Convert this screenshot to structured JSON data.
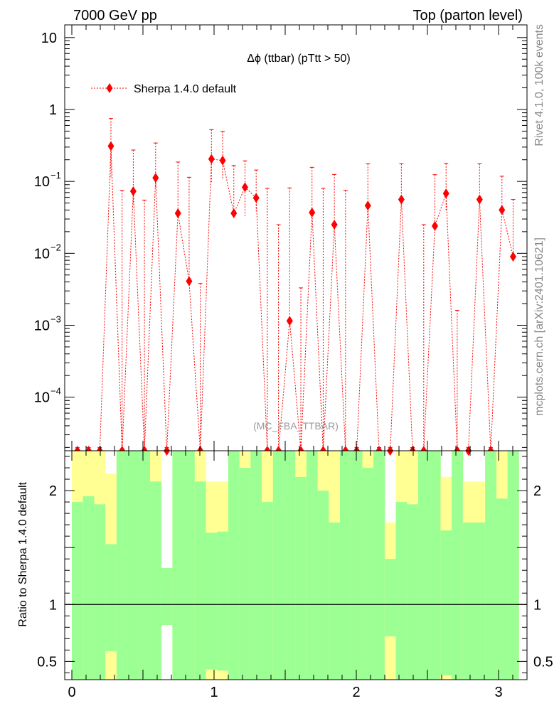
{
  "header": {
    "left": "7000 GeV pp",
    "right": "Top (parton level)"
  },
  "side_labels": {
    "rivet": "Rivet 4.1.0,  100k events",
    "mcplots": "mcplots.cern.ch [arXiv:2401.10621]"
  },
  "watermark": "(MC_FBA_TTBAR)",
  "ratio_ylabel": "Ratio to Sherpa 1.4.0 default",
  "chart_data": [
    {
      "type": "line",
      "title": "Δϕ (ttbar) (pTtt > 50)",
      "yscale": "log",
      "xlim": [
        -0.05,
        3.2
      ],
      "ylim": [
        1.8e-05,
        15
      ],
      "yticks": [
        {
          "value": 10,
          "label": "10"
        },
        {
          "value": 1,
          "label": "1"
        },
        {
          "value": 0.1,
          "base": "10",
          "exp": "−1"
        },
        {
          "value": 0.01,
          "base": "10",
          "exp": "−2"
        },
        {
          "value": 0.001,
          "base": "10",
          "exp": "−3"
        },
        {
          "value": 0.0001,
          "base": "10",
          "exp": "−4"
        }
      ],
      "legend": {
        "placement": "top-left",
        "entries": [
          "Sherpa 1.4.0 default"
        ]
      },
      "series": [
        {
          "name": "Sherpa 1.4.0 default",
          "color": "#ff0000",
          "x": [
            0.0393,
            0.1178,
            0.1963,
            0.2749,
            0.3534,
            0.432,
            0.5105,
            0.589,
            0.6676,
            0.7461,
            0.8247,
            0.9032,
            0.9817,
            1.0603,
            1.1388,
            1.2174,
            1.2959,
            1.3744,
            1.453,
            1.5315,
            1.6101,
            1.6886,
            1.7671,
            1.8457,
            1.9242,
            2.0028,
            2.0813,
            2.1598,
            2.2384,
            2.3169,
            2.3955,
            2.474,
            2.5525,
            2.6311,
            2.7096,
            2.7882,
            2.8667,
            2.9452,
            3.0238,
            3.1023
          ],
          "y": [
            1e-05,
            1e-05,
            1e-05,
            0.31,
            1e-05,
            0.073,
            1e-05,
            0.112,
            1e-05,
            0.036,
            0.0041,
            1e-05,
            0.205,
            0.195,
            0.036,
            0.083,
            0.059,
            1e-05,
            1e-05,
            0.00115,
            1e-05,
            0.037,
            1e-05,
            0.025,
            1e-05,
            1e-05,
            0.046,
            1e-05,
            1e-05,
            0.056,
            1e-05,
            1e-05,
            0.024,
            0.068,
            1e-05,
            1e-05,
            0.056,
            1e-05,
            0.04,
            0.009
          ],
          "yerr_up": [
            1e-05,
            1e-05,
            1e-05,
            0.44,
            0.075,
            0.2,
            0.055,
            0.23,
            1e-05,
            0.15,
            0.11,
            0.0038,
            0.32,
            0.3,
            0.13,
            0.11,
            0.085,
            0.08,
            0.025,
            0.08,
            0.0033,
            0.12,
            0.08,
            0.1,
            0.075,
            1e-05,
            0.13,
            1e-05,
            1e-05,
            0.12,
            1e-05,
            0.025,
            0.1,
            0.11,
            0.0016,
            1e-05,
            0.12,
            1e-05,
            0.078,
            0.047
          ],
          "yerr_down": [
            1e-05,
            1e-05,
            1e-05,
            0.2,
            1e-05,
            0.025,
            1e-05,
            0.03,
            1e-05,
            0.0002,
            1e-05,
            1e-05,
            0.11,
            0.09,
            0.0007,
            0.05,
            0.02,
            1e-05,
            1e-05,
            1e-05,
            1e-05,
            1e-05,
            1e-05,
            1e-05,
            1e-05,
            1e-05,
            1e-05,
            1e-05,
            1e-05,
            0.006,
            1e-05,
            1e-05,
            1e-05,
            0.03,
            1e-05,
            1e-05,
            1e-05,
            1e-05,
            0.003,
            1e-05
          ]
        }
      ]
    },
    {
      "type": "area",
      "ylabel": "Ratio to Sherpa 1.4.0 default",
      "xlim": [
        -0.05,
        3.2
      ],
      "ylim": [
        0.34,
        2.35
      ],
      "xticks": [
        0,
        1,
        2,
        3
      ],
      "yticks": [
        {
          "value": 0.5,
          "label": "0.5"
        },
        {
          "value": 1,
          "label": "1"
        },
        {
          "value": 2,
          "label": "2"
        }
      ],
      "reference_line": 1,
      "bin_width": 0.0785,
      "bins": [
        {
          "x": 0.0393,
          "g_lo": 0.34,
          "g_hi": 1.9,
          "y_lo": 0.34,
          "y_hi": 2.35
        },
        {
          "x": 0.1178,
          "g_lo": 0.34,
          "g_hi": 1.95,
          "y_lo": 0.34,
          "y_hi": 2.35
        },
        {
          "x": 0.1963,
          "g_lo": 0.34,
          "g_hi": 1.88,
          "y_lo": 0.34,
          "y_hi": 2.35
        },
        {
          "x": 0.2749,
          "g_lo": 0.59,
          "g_hi": 1.53,
          "y_lo": 0.34,
          "y_hi": 2.15
        },
        {
          "x": 0.3534,
          "g_lo": 0.34,
          "g_hi": 2.35,
          "y_lo": 0.34,
          "y_hi": 2.35
        },
        {
          "x": 0.432,
          "g_lo": 0.34,
          "g_hi": 2.35,
          "y_lo": 0.34,
          "y_hi": 2.35
        },
        {
          "x": 0.5105,
          "g_lo": 0.34,
          "g_hi": 2.35,
          "y_lo": 0.34,
          "y_hi": 2.35
        },
        {
          "x": 0.589,
          "g_lo": 0.34,
          "g_hi": 2.08,
          "y_lo": 0.34,
          "y_hi": 2.35
        },
        {
          "x": 0.6676,
          "g_lo": 0.82,
          "g_hi": 1.32,
          "y_lo": 0.9,
          "y_hi": 1.18
        },
        {
          "x": 0.7461,
          "g_lo": 0.34,
          "g_hi": 2.35,
          "y_lo": 0.34,
          "y_hi": 2.35
        },
        {
          "x": 0.8247,
          "g_lo": 0.34,
          "g_hi": 2.35,
          "y_lo": 0.34,
          "y_hi": 2.35
        },
        {
          "x": 0.9032,
          "g_lo": 0.34,
          "g_hi": 2.08,
          "y_lo": 0.34,
          "y_hi": 2.35
        },
        {
          "x": 0.9817,
          "g_lo": 0.43,
          "g_hi": 1.63,
          "y_lo": 0.34,
          "y_hi": 2.08
        },
        {
          "x": 1.0603,
          "g_lo": 0.42,
          "g_hi": 1.64,
          "y_lo": 0.34,
          "y_hi": 2.08
        },
        {
          "x": 1.1388,
          "g_lo": 0.34,
          "g_hi": 2.35,
          "y_lo": 0.34,
          "y_hi": 2.35
        },
        {
          "x": 1.2174,
          "g_lo": 0.34,
          "g_hi": 2.2,
          "y_lo": 0.34,
          "y_hi": 2.35
        },
        {
          "x": 1.2959,
          "g_lo": 0.34,
          "g_hi": 2.35,
          "y_lo": 0.34,
          "y_hi": 2.35
        },
        {
          "x": 1.3744,
          "g_lo": 0.34,
          "g_hi": 1.9,
          "y_lo": 0.34,
          "y_hi": 2.35
        },
        {
          "x": 1.453,
          "g_lo": 0.34,
          "g_hi": 2.35,
          "y_lo": 0.34,
          "y_hi": 2.35
        },
        {
          "x": 1.5315,
          "g_lo": 0.34,
          "g_hi": 2.35,
          "y_lo": 0.34,
          "y_hi": 2.35
        },
        {
          "x": 1.6101,
          "g_lo": 0.34,
          "g_hi": 2.12,
          "y_lo": 0.34,
          "y_hi": 2.35
        },
        {
          "x": 1.6886,
          "g_lo": 0.34,
          "g_hi": 2.35,
          "y_lo": 0.34,
          "y_hi": 2.35
        },
        {
          "x": 1.7671,
          "g_lo": 0.34,
          "g_hi": 2.0,
          "y_lo": 0.34,
          "y_hi": 2.35
        },
        {
          "x": 1.8457,
          "g_lo": 0.34,
          "g_hi": 1.72,
          "y_lo": 0.34,
          "y_hi": 2.35
        },
        {
          "x": 1.9242,
          "g_lo": 0.34,
          "g_hi": 2.35,
          "y_lo": 0.34,
          "y_hi": 2.35
        },
        {
          "x": 2.0028,
          "g_lo": 0.34,
          "g_hi": 2.35,
          "y_lo": 0.34,
          "y_hi": 2.35
        },
        {
          "x": 2.0813,
          "g_lo": 0.34,
          "g_hi": 2.2,
          "y_lo": 0.34,
          "y_hi": 2.35
        },
        {
          "x": 2.1598,
          "g_lo": 0.34,
          "g_hi": 2.35,
          "y_lo": 0.34,
          "y_hi": 2.35
        },
        {
          "x": 2.2384,
          "g_lo": 0.72,
          "g_hi": 1.4,
          "y_lo": 0.34,
          "y_hi": 1.72
        },
        {
          "x": 2.3169,
          "g_lo": 0.34,
          "g_hi": 1.9,
          "y_lo": 0.34,
          "y_hi": 2.35
        },
        {
          "x": 2.3955,
          "g_lo": 0.34,
          "g_hi": 1.88,
          "y_lo": 0.34,
          "y_hi": 2.35
        },
        {
          "x": 2.474,
          "g_lo": 0.34,
          "g_hi": 2.35,
          "y_lo": 0.34,
          "y_hi": 2.35
        },
        {
          "x": 2.5525,
          "g_lo": 0.34,
          "g_hi": 2.35,
          "y_lo": 0.34,
          "y_hi": 2.35
        },
        {
          "x": 2.6311,
          "g_lo": 0.38,
          "g_hi": 1.65,
          "y_lo": 0.34,
          "y_hi": 2.12
        },
        {
          "x": 2.7096,
          "g_lo": 0.34,
          "g_hi": 2.35,
          "y_lo": 0.34,
          "y_hi": 2.35
        },
        {
          "x": 2.7882,
          "g_lo": 0.34,
          "g_hi": 1.72,
          "y_lo": 0.34,
          "y_hi": 2.08
        },
        {
          "x": 2.8667,
          "g_lo": 0.34,
          "g_hi": 1.72,
          "y_lo": 0.34,
          "y_hi": 2.08
        },
        {
          "x": 2.9452,
          "g_lo": 0.34,
          "g_hi": 2.35,
          "y_lo": 0.34,
          "y_hi": 2.35
        },
        {
          "x": 3.0238,
          "g_lo": 0.34,
          "g_hi": 1.93,
          "y_lo": 0.34,
          "y_hi": 2.35
        },
        {
          "x": 3.1023,
          "g_lo": 0.34,
          "g_hi": 2.35,
          "y_lo": 0.34,
          "y_hi": 2.35
        }
      ]
    }
  ],
  "colors": {
    "mc_line": "#ff0000",
    "band_green": "#9cff94",
    "band_yellow": "#ffff94",
    "axis": "#000000",
    "side_text": "#888888"
  }
}
